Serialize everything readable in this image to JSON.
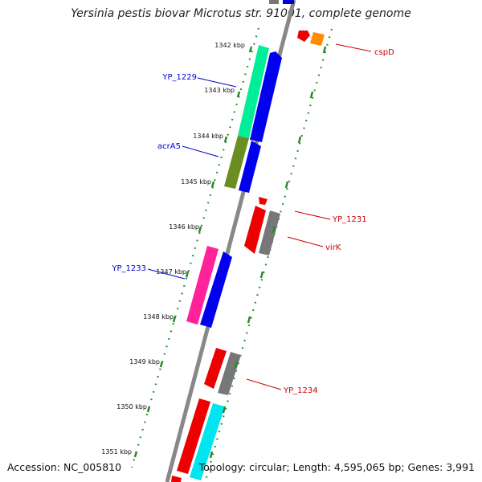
{
  "title": "Yersinia pestis biovar Microtus str. 91001, complete genome",
  "footer": {
    "accession": "Accession: NC_005810",
    "topology": "Topology: circular; Length: 4,595,065 bp; Genes: 3,991"
  },
  "colors": {
    "backbone": "#888888",
    "tick": "#2a8a2a",
    "label_forward": "#0000cc",
    "label_reverse": "#cc0000"
  },
  "ticks": [
    {
      "kbp": 1342,
      "label": "1342 kbp"
    },
    {
      "kbp": 1343,
      "label": "1343 kbp"
    },
    {
      "kbp": 1344,
      "label": "1344 kbp"
    },
    {
      "kbp": 1345,
      "label": "1345 kbp"
    },
    {
      "kbp": 1346,
      "label": "1346 kbp"
    },
    {
      "kbp": 1347,
      "label": "1347 kbp"
    },
    {
      "kbp": 1348,
      "label": "1348 kbp"
    },
    {
      "kbp": 1349,
      "label": "1349 kbp"
    },
    {
      "kbp": 1350,
      "label": "1350 kbp"
    },
    {
      "kbp": 1351,
      "label": "1351 kbp"
    }
  ],
  "gene_labels": [
    {
      "name": "YP_1229",
      "side": "left"
    },
    {
      "name": "acrA5",
      "side": "left"
    },
    {
      "name": "YP_1233",
      "side": "left"
    },
    {
      "name": "cspD",
      "side": "right"
    },
    {
      "name": "YP_1231",
      "side": "right"
    },
    {
      "name": "virK",
      "side": "right"
    },
    {
      "name": "YP_1234",
      "side": "right"
    }
  ]
}
